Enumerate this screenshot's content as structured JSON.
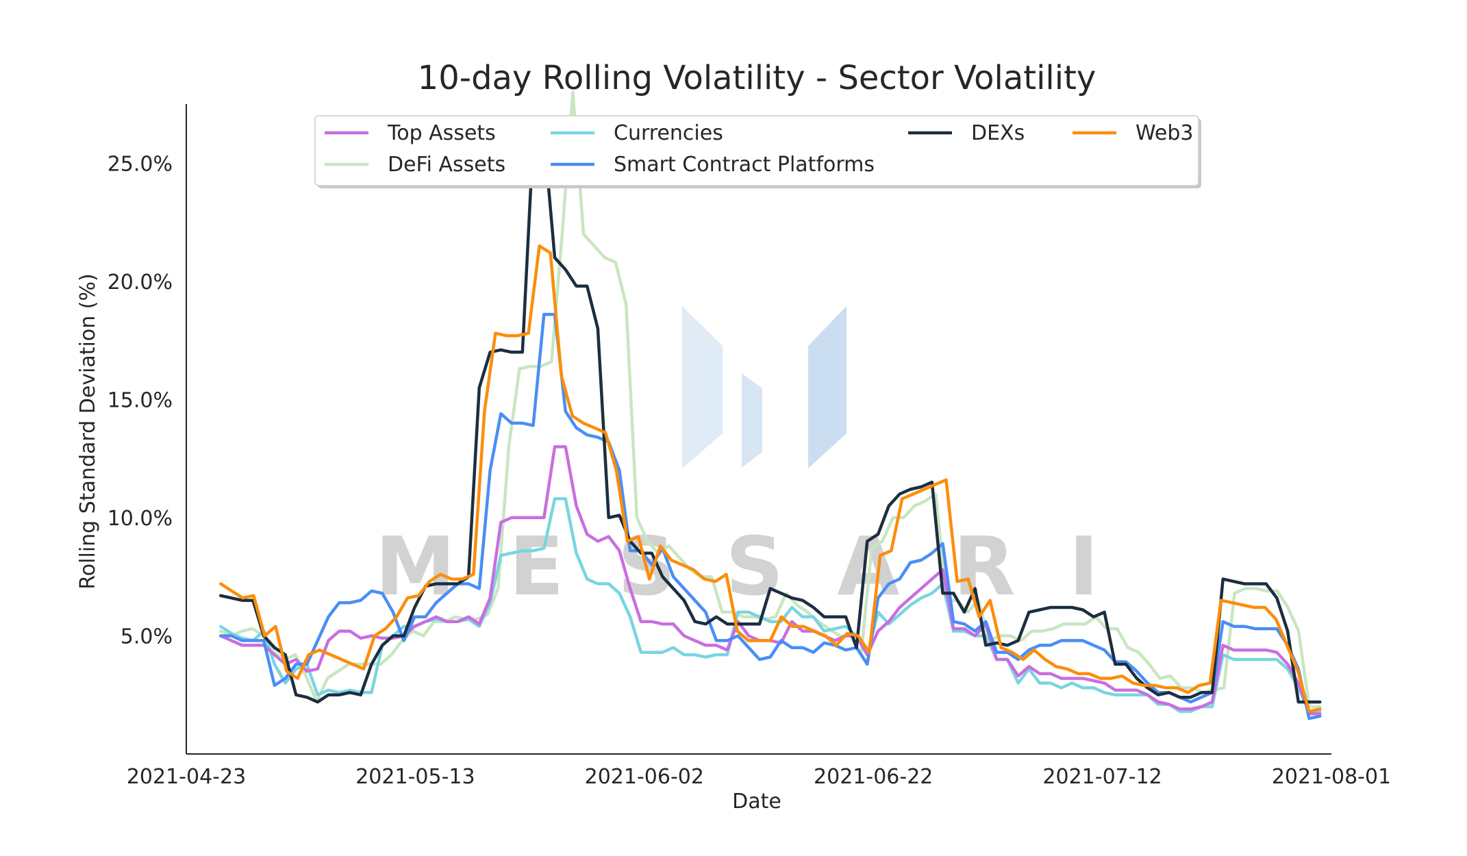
{
  "watermark": {
    "text": "MESSARI",
    "logo": "messari-m-logo"
  },
  "chart_data": {
    "type": "line",
    "title": "10-day Rolling Volatility - Sector Volatility",
    "xlabel": "Date",
    "ylabel": "Rolling Standard Deviation (%)",
    "x_start": "2021-04-26",
    "x_end": "2021-07-31",
    "xlim": [
      "2021-04-23",
      "2021-08-01"
    ],
    "ylim": [
      0.0,
      0.275
    ],
    "xticks": [
      {
        "date": "2021-04-23",
        "label": "2021-04-23"
      },
      {
        "date": "2021-05-13",
        "label": "2021-05-13"
      },
      {
        "date": "2021-06-02",
        "label": "2021-06-02"
      },
      {
        "date": "2021-06-22",
        "label": "2021-06-22"
      },
      {
        "date": "2021-07-12",
        "label": "2021-07-12"
      },
      {
        "date": "2021-08-01",
        "label": "2021-08-01"
      }
    ],
    "yticks": [
      {
        "value": 0.05,
        "label": "5.0%"
      },
      {
        "value": 0.1,
        "label": "10.0%"
      },
      {
        "value": 0.15,
        "label": "15.0%"
      },
      {
        "value": 0.2,
        "label": "20.0%"
      },
      {
        "value": 0.25,
        "label": "25.0%"
      }
    ],
    "grid": false,
    "legend": {
      "placement": "upper-center",
      "columns": 4
    },
    "series": [
      {
        "name": "DeFi Assets",
        "color": "#c8e6c0",
        "values": [
          5.2,
          5.0,
          5.2,
          5.3,
          5.0,
          4.3,
          4.0,
          4.2,
          3.3,
          2.2,
          3.2,
          3.5,
          3.8,
          3.8,
          3.8,
          3.8,
          4.2,
          4.8,
          5.2,
          5.0,
          5.6,
          5.6,
          5.8,
          5.7,
          5.7,
          5.9,
          7.0,
          13.0,
          16.3,
          16.4,
          16.4,
          16.6,
          22.0,
          28.0,
          22.0,
          21.5,
          21.0,
          20.8,
          19.0,
          10.0,
          9.0,
          8.5,
          8.8,
          8.3,
          7.8,
          7.5,
          7.5,
          6.0,
          6.0,
          5.8,
          5.8,
          5.7,
          5.8,
          6.8,
          6.3,
          6.0,
          5.6,
          5.3,
          5.0,
          5.0,
          4.2,
          8.7,
          9.0,
          10.0,
          10.0,
          10.5,
          10.7,
          11.0,
          6.5,
          6.5,
          6.0,
          6.5,
          4.8,
          5.0,
          5.0,
          4.8,
          5.2,
          5.2,
          5.3,
          5.5,
          5.5,
          5.5,
          5.8,
          5.3,
          5.3,
          4.5,
          4.3,
          3.8,
          3.2,
          3.3,
          2.8,
          2.8,
          2.6,
          2.7,
          2.8,
          6.8,
          7.0,
          7.0,
          6.9,
          6.9,
          6.2,
          5.2,
          2.0,
          2.0
        ]
      },
      {
        "name": "Currencies",
        "color": "#79d5e0",
        "values": [
          5.4,
          5.1,
          4.9,
          4.8,
          5.2,
          3.8,
          3.0,
          3.6,
          3.8,
          2.5,
          2.7,
          2.6,
          2.7,
          2.6,
          2.6,
          4.6,
          5.0,
          5.4,
          5.4,
          5.6,
          5.7,
          5.6,
          5.6,
          5.7,
          5.4,
          6.4,
          8.4,
          8.5,
          8.6,
          8.6,
          8.7,
          10.8,
          10.8,
          8.5,
          7.4,
          7.2,
          7.2,
          6.8,
          5.8,
          4.3,
          4.3,
          4.3,
          4.5,
          4.2,
          4.2,
          4.1,
          4.2,
          4.2,
          6.0,
          6.0,
          5.8,
          5.6,
          5.6,
          6.2,
          5.8,
          5.8,
          5.2,
          5.3,
          5.4,
          5.0,
          4.2,
          6.0,
          5.5,
          5.9,
          6.3,
          6.6,
          6.8,
          7.2,
          5.2,
          5.2,
          5.0,
          5.0,
          4.0,
          4.0,
          3.0,
          3.6,
          3.0,
          3.0,
          2.8,
          3.0,
          2.8,
          2.8,
          2.6,
          2.5,
          2.5,
          2.5,
          2.5,
          2.1,
          2.1,
          1.8,
          1.8,
          2.0,
          2.0,
          4.2,
          4.0,
          4.0,
          4.0,
          4.0,
          4.0,
          3.6,
          2.8,
          1.8,
          1.8
        ]
      },
      {
        "name": "Top Assets",
        "color": "#c96ee0",
        "values": [
          5.0,
          4.8,
          4.6,
          4.6,
          4.6,
          4.2,
          3.8,
          4.0,
          3.5,
          3.6,
          4.8,
          5.2,
          5.2,
          4.9,
          5.0,
          4.9,
          4.9,
          5.0,
          5.4,
          5.6,
          5.8,
          5.6,
          5.6,
          5.8,
          5.5,
          6.6,
          9.8,
          10.0,
          10.0,
          10.0,
          10.0,
          13.0,
          13.0,
          10.5,
          9.3,
          9.0,
          9.2,
          8.6,
          7.0,
          5.6,
          5.6,
          5.5,
          5.5,
          5.0,
          4.8,
          4.6,
          4.6,
          4.4,
          5.6,
          5.0,
          4.8,
          4.8,
          4.7,
          5.6,
          5.2,
          5.2,
          5.0,
          4.8,
          5.0,
          5.0,
          4.2,
          5.2,
          5.6,
          6.2,
          6.6,
          7.0,
          7.4,
          7.8,
          5.3,
          5.3,
          5.0,
          5.5,
          4.0,
          4.0,
          3.3,
          3.7,
          3.4,
          3.4,
          3.2,
          3.2,
          3.2,
          3.1,
          3.0,
          2.7,
          2.7,
          2.7,
          2.5,
          2.2,
          2.1,
          1.9,
          1.9,
          2.0,
          2.2,
          4.6,
          4.4,
          4.4,
          4.4,
          4.4,
          4.3,
          3.8,
          3.0,
          1.7,
          1.7
        ]
      },
      {
        "name": "Smart Contract Platforms",
        "color": "#4a8ef5",
        "values": [
          5.0,
          5.0,
          4.8,
          4.8,
          4.8,
          2.9,
          3.2,
          3.8,
          3.8,
          4.8,
          5.8,
          6.4,
          6.4,
          6.5,
          6.9,
          6.8,
          6.0,
          4.8,
          5.8,
          5.8,
          6.4,
          6.8,
          7.2,
          7.2,
          7.0,
          12.0,
          14.4,
          14.0,
          14.0,
          13.9,
          18.6,
          18.6,
          14.5,
          13.8,
          13.5,
          13.4,
          13.2,
          12.0,
          8.6,
          8.6,
          8.0,
          8.7,
          7.5,
          7.0,
          6.5,
          6.0,
          4.8,
          4.8,
          5.0,
          4.5,
          4.0,
          4.1,
          4.8,
          4.5,
          4.5,
          4.3,
          4.7,
          4.6,
          4.4,
          4.5,
          3.8,
          6.6,
          7.2,
          7.4,
          8.1,
          8.2,
          8.5,
          8.9,
          5.6,
          5.5,
          5.2,
          5.6,
          4.3,
          4.3,
          4.0,
          4.4,
          4.6,
          4.6,
          4.8,
          4.8,
          4.8,
          4.6,
          4.4,
          3.9,
          3.9,
          3.5,
          3.0,
          2.6,
          2.6,
          2.4,
          2.2,
          2.4,
          2.6,
          5.6,
          5.4,
          5.4,
          5.3,
          5.3,
          5.3,
          4.6,
          3.6,
          1.5,
          1.6
        ]
      },
      {
        "name": "DEXs",
        "color": "#1c2e40",
        "values": [
          6.7,
          6.6,
          6.5,
          6.5,
          5.0,
          4.5,
          4.2,
          2.5,
          2.4,
          2.2,
          2.5,
          2.5,
          2.6,
          2.5,
          3.8,
          4.6,
          5.0,
          5.0,
          6.2,
          7.1,
          7.2,
          7.2,
          7.2,
          7.5,
          15.5,
          17.0,
          17.1,
          17.0,
          17.0,
          26.0,
          26.2,
          21.0,
          20.5,
          19.8,
          19.8,
          18.0,
          10.0,
          10.1,
          9.0,
          8.5,
          8.5,
          7.5,
          7.0,
          6.5,
          5.6,
          5.5,
          5.8,
          5.5,
          5.5,
          5.5,
          5.5,
          7.0,
          6.8,
          6.6,
          6.5,
          6.2,
          5.8,
          5.8,
          5.8,
          4.5,
          9.0,
          9.3,
          10.5,
          11.0,
          11.2,
          11.3,
          11.5,
          6.8,
          6.8,
          6.0,
          7.0,
          4.6,
          4.7,
          4.6,
          4.8,
          6.0,
          6.1,
          6.2,
          6.2,
          6.2,
          6.1,
          5.8,
          6.0,
          3.8,
          3.8,
          3.2,
          2.8,
          2.5,
          2.6,
          2.4,
          2.4,
          2.6,
          2.6,
          7.4,
          7.3,
          7.2,
          7.2,
          7.2,
          6.6,
          5.2,
          2.2,
          2.2,
          2.2
        ]
      },
      {
        "name": "Web3",
        "color": "#fc8d0a",
        "values": [
          7.2,
          6.9,
          6.6,
          6.7,
          5.0,
          5.4,
          3.5,
          3.2,
          4.2,
          4.4,
          4.2,
          4.0,
          3.8,
          3.6,
          5.0,
          5.3,
          5.8,
          6.6,
          6.7,
          7.3,
          7.6,
          7.4,
          7.4,
          7.6,
          14.5,
          17.8,
          17.7,
          17.7,
          17.8,
          21.5,
          21.2,
          16.0,
          14.3,
          14.0,
          13.8,
          13.6,
          12.0,
          9.0,
          9.2,
          7.4,
          8.8,
          8.2,
          8.0,
          7.8,
          7.4,
          7.3,
          7.6,
          5.2,
          4.8,
          4.8,
          4.8,
          5.8,
          5.4,
          5.4,
          5.2,
          5.0,
          4.6,
          5.1,
          5.0,
          4.3,
          8.4,
          8.6,
          10.8,
          11.0,
          11.2,
          11.4,
          11.6,
          7.3,
          7.4,
          5.8,
          6.5,
          4.5,
          4.3,
          4.0,
          4.4,
          4.0,
          3.7,
          3.6,
          3.4,
          3.4,
          3.2,
          3.2,
          3.3,
          3.0,
          2.9,
          2.9,
          2.8,
          2.8,
          2.6,
          2.9,
          3.0,
          6.5,
          6.4,
          6.3,
          6.2,
          6.2,
          5.7,
          4.6,
          3.5,
          1.8,
          1.9
        ]
      }
    ]
  },
  "legend_order": [
    "Top Assets",
    "DeFi Assets",
    "Currencies",
    "Smart Contract Platforms",
    "DEXs",
    "",
    "Web3",
    ""
  ]
}
